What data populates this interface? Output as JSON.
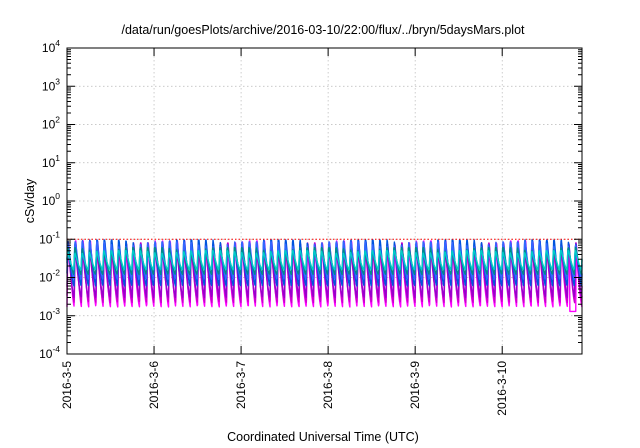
{
  "chart_data": {
    "type": "line",
    "title": "/data/run/goesPlots/archive/2016-03-10/22:00/flux/../bryn/5daysMars.plot",
    "xlabel": "Coordinated Universal Time (UTC)",
    "ylabel": "cSv/day",
    "yscale": "log",
    "ylim": [
      0.0001,
      10000
    ],
    "y_tick_exponents": [
      -4,
      -3,
      -2,
      -1,
      0,
      1,
      2,
      3,
      4
    ],
    "y_tick_base": "10",
    "x_range": [
      "2016-03-05T00:00",
      "2016-03-10T22:00"
    ],
    "x_tick_labels": [
      "2016-3-5",
      "2016-3-6",
      "2016-3-7",
      "2016-3-8",
      "2016-3-9",
      "2016-3-10"
    ],
    "grid": true,
    "legend": "none",
    "cycles_per_day": 12,
    "series": [
      {
        "color": "#ff00ff",
        "peak": 0.09,
        "trough": 0.0017
      },
      {
        "color": "#cc00cc",
        "peak": 0.08,
        "trough": 0.0022
      },
      {
        "color": "#9900cc",
        "peak": 0.075,
        "trough": 0.003
      },
      {
        "color": "#0055dd",
        "peak": 0.095,
        "trough": 0.006
      },
      {
        "color": "#3366ff",
        "peak": 0.085,
        "trough": 0.009
      },
      {
        "color": "#008b8b",
        "peak": 0.06,
        "trough": 0.012
      },
      {
        "color": "#00cccc",
        "peak": 0.05,
        "trough": 0.016
      }
    ],
    "reference_line": {
      "value": 0.1,
      "color": "#ff0000"
    },
    "end_dip": {
      "x": "2016-03-10T19:30",
      "value": 0.0013
    }
  }
}
